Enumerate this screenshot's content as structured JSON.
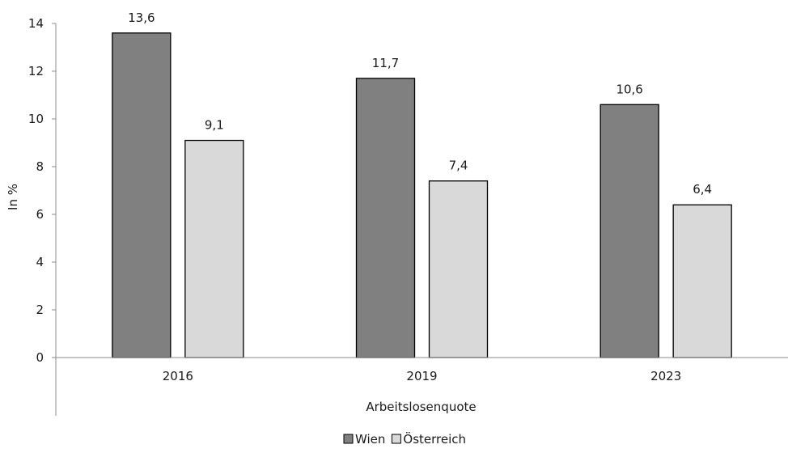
{
  "chart_data": {
    "type": "bar",
    "title": "",
    "xlabel": "Arbeitslosenquote",
    "ylabel": "In %",
    "categories": [
      "2016",
      "2019",
      "2023"
    ],
    "series": [
      {
        "name": "Wien",
        "values": [
          13.6,
          11.7,
          10.6
        ],
        "labels": [
          "13,6",
          "11,7",
          "10,6"
        ],
        "color": "#808080"
      },
      {
        "name": "Österreich",
        "values": [
          9.1,
          7.4,
          6.4
        ],
        "labels": [
          "9,1",
          "7,4",
          "6,4"
        ],
        "color": "#d9d9d9"
      }
    ],
    "ylim": [
      0,
      14
    ],
    "yticks": [
      0,
      2,
      4,
      6,
      8,
      10,
      12,
      14
    ],
    "grid": false,
    "legend_position": "bottom"
  }
}
